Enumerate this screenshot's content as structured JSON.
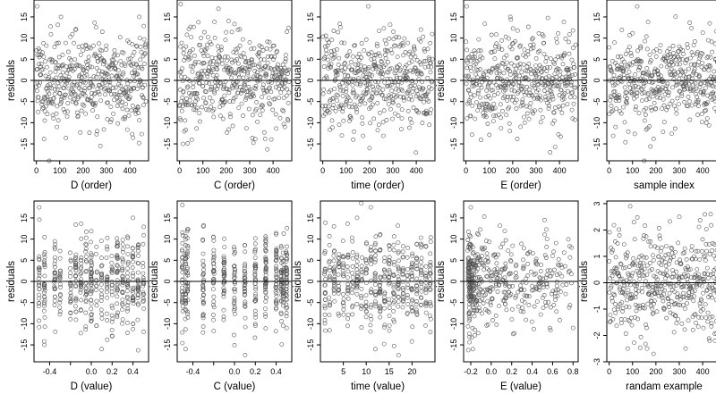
{
  "figure": {
    "background": "#ffffff",
    "point_color": "#555555",
    "frame_color": "#000000"
  },
  "chart_data": [
    {
      "type": "scatter",
      "row": 0,
      "col": 0,
      "xlabel": "D (order)",
      "ylabel": "residuals",
      "xlim": [
        -10,
        480
      ],
      "ylim": [
        -19,
        19
      ],
      "xticks": [
        0,
        100,
        200,
        300,
        400
      ],
      "xtick_labels": [
        "0",
        "100",
        "200",
        "300",
        "400"
      ],
      "yticks": [
        -15,
        -10,
        -5,
        0,
        5,
        10,
        15
      ],
      "ytick_labels": [
        "-15",
        "-10",
        "-5",
        "0",
        "5",
        "10",
        "15"
      ],
      "hline": 0,
      "x_pattern": "index",
      "n": 460,
      "spread": 5.5,
      "seed": 11,
      "sample_points": [
        [
          3,
          17.5
        ],
        [
          5,
          6
        ],
        [
          10,
          7.5
        ],
        [
          55,
          -19
        ],
        [
          200,
          3
        ],
        [
          260,
          -12
        ],
        [
          430,
          8
        ],
        [
          440,
          15
        ]
      ]
    },
    {
      "type": "scatter",
      "row": 0,
      "col": 1,
      "xlabel": "C (order)",
      "ylabel": "residuals",
      "xlim": [
        -10,
        480
      ],
      "ylim": [
        -19,
        19
      ],
      "xticks": [
        0,
        100,
        200,
        300,
        400
      ],
      "xtick_labels": [
        "0",
        "100",
        "200",
        "300",
        "400"
      ],
      "yticks": [
        -15,
        -10,
        -5,
        0,
        5,
        10,
        15
      ],
      "ytick_labels": [
        "-15",
        "-10",
        "-5",
        "0",
        "5",
        "10",
        "15"
      ],
      "hline": 0,
      "x_pattern": "index",
      "n": 460,
      "spread": 5.5,
      "seed": 23,
      "sample_points": [
        [
          2,
          -9
        ],
        [
          5,
          18
        ],
        [
          15,
          -15
        ],
        [
          250,
          12
        ],
        [
          300,
          9
        ],
        [
          440,
          -7
        ],
        [
          450,
          -11
        ]
      ]
    },
    {
      "type": "scatter",
      "row": 0,
      "col": 2,
      "xlabel": "time (order)",
      "ylabel": "residuals",
      "xlim": [
        -10,
        480
      ],
      "ylim": [
        -19,
        19
      ],
      "xticks": [
        0,
        100,
        200,
        300,
        400
      ],
      "xtick_labels": [
        "0",
        "100",
        "200",
        "300",
        "400"
      ],
      "yticks": [
        -15,
        -10,
        -5,
        0,
        5,
        10,
        15
      ],
      "ytick_labels": [
        "-15",
        "-10",
        "-5",
        "0",
        "5",
        "10",
        "15"
      ],
      "hline": 0,
      "x_pattern": "index",
      "n": 460,
      "spread": 5.5,
      "seed": 37,
      "sample_points": [
        [
          195,
          17.5
        ],
        [
          200,
          -16
        ],
        [
          130,
          -14
        ],
        [
          420,
          12
        ],
        [
          440,
          -8
        ]
      ]
    },
    {
      "type": "scatter",
      "row": 0,
      "col": 3,
      "xlabel": "E (order)",
      "ylabel": "residuals",
      "xlim": [
        -10,
        480
      ],
      "ylim": [
        -19,
        19
      ],
      "xticks": [
        0,
        100,
        200,
        300,
        400
      ],
      "xtick_labels": [
        "0",
        "100",
        "200",
        "300",
        "400"
      ],
      "yticks": [
        -15,
        -10,
        -5,
        0,
        5,
        10,
        15
      ],
      "ytick_labels": [
        "-15",
        "-10",
        "-5",
        "0",
        "5",
        "10",
        "15"
      ],
      "hline": 0,
      "x_pattern": "index",
      "n": 460,
      "spread": 5.5,
      "seed": 41,
      "sample_points": [
        [
          3,
          17.5
        ],
        [
          5,
          -9
        ],
        [
          190,
          15
        ],
        [
          360,
          -17
        ],
        [
          420,
          6
        ]
      ]
    },
    {
      "type": "scatter",
      "row": 0,
      "col": 4,
      "xlabel": "sample index",
      "ylabel": "residuals",
      "xlim": [
        -10,
        480
      ],
      "ylim": [
        -19,
        19
      ],
      "xticks": [
        0,
        100,
        200,
        300,
        400
      ],
      "xtick_labels": [
        "0",
        "100",
        "200",
        "300",
        "400"
      ],
      "yticks": [
        -15,
        -10,
        -5,
        0,
        5,
        10,
        15
      ],
      "ytick_labels": [
        "-15",
        "-10",
        "-5",
        "0",
        "5",
        "10",
        "15"
      ],
      "hline": 0,
      "x_pattern": "index",
      "n": 460,
      "spread": 5.5,
      "seed": 53,
      "sample_points": [
        [
          120,
          17.5
        ],
        [
          150,
          -19
        ],
        [
          300,
          8
        ],
        [
          420,
          -9
        ]
      ]
    },
    {
      "type": "scatter",
      "row": 1,
      "col": 0,
      "xlabel": "D (value)",
      "ylabel": "residuals",
      "xlim": [
        -0.55,
        0.55
      ],
      "ylim": [
        -19,
        19
      ],
      "xticks": [
        -0.4,
        -0.2,
        0.0,
        0.2,
        0.4
      ],
      "xtick_labels": [
        "-0.4",
        "",
        "0.0",
        "0.2",
        "0.4"
      ],
      "yticks": [
        -15,
        -10,
        -5,
        0,
        5,
        10,
        15
      ],
      "ytick_labels": [
        "-15",
        "-10",
        "-5",
        "0",
        "5",
        "10",
        "15"
      ],
      "hline": 0,
      "x_pattern": "clustered",
      "x_levels": [
        -0.5,
        -0.45,
        -0.35,
        -0.3,
        -0.2,
        -0.15,
        -0.1,
        -0.05,
        0.0,
        0.05,
        0.1,
        0.15,
        0.2,
        0.25,
        0.3,
        0.35,
        0.4,
        0.45,
        0.5
      ],
      "n": 460,
      "spread": 5.5,
      "seed": 61,
      "sample_points": [
        [
          -0.5,
          17.5
        ],
        [
          -0.45,
          -15
        ],
        [
          0.4,
          15
        ],
        [
          0.1,
          -16
        ]
      ]
    },
    {
      "type": "scatter",
      "row": 1,
      "col": 1,
      "xlabel": "C (value)",
      "ylabel": "residuals",
      "xlim": [
        -0.55,
        0.55
      ],
      "ylim": [
        -19,
        19
      ],
      "xticks": [
        -0.4,
        -0.2,
        0.0,
        0.2,
        0.4
      ],
      "xtick_labels": [
        "-0.4",
        "",
        "0.0",
        "0.2",
        "0.4"
      ],
      "yticks": [
        -15,
        -10,
        -5,
        0,
        5,
        10,
        15
      ],
      "ytick_labels": [
        "-15",
        "-10",
        "-5",
        "0",
        "5",
        "10",
        "15"
      ],
      "hline": 0,
      "x_pattern": "clustered",
      "x_levels": [
        -0.5,
        -0.47,
        -0.45,
        -0.3,
        -0.2,
        -0.1,
        0.0,
        0.1,
        0.2,
        0.3,
        0.4,
        0.45,
        0.47,
        0.5
      ],
      "n": 460,
      "spread": 5.5,
      "seed": 71,
      "sample_points": [
        [
          -0.5,
          18
        ],
        [
          -0.47,
          -16
        ],
        [
          0.5,
          -11
        ],
        [
          0.45,
          2
        ]
      ]
    },
    {
      "type": "scatter",
      "row": 1,
      "col": 2,
      "xlabel": "time (value)",
      "ylabel": "residuals",
      "xlim": [
        0,
        25
      ],
      "ylim": [
        -19,
        19
      ],
      "xticks": [
        5,
        10,
        15,
        20
      ],
      "xtick_labels": [
        "5",
        "10",
        "15",
        "20"
      ],
      "yticks": [
        -15,
        -10,
        -5,
        0,
        5,
        10,
        15
      ],
      "ytick_labels": [
        "-15",
        "-10",
        "-5",
        "0",
        "5",
        "10",
        "15"
      ],
      "hline": 0,
      "x_pattern": "clustered",
      "x_levels": [
        1,
        2,
        3,
        4,
        5,
        6,
        7,
        8,
        9,
        10,
        11,
        12,
        13,
        14,
        15,
        16,
        17,
        18,
        19,
        20,
        21,
        22,
        23,
        24
      ],
      "n": 460,
      "spread": 5.5,
      "seed": 83,
      "sample_points": [
        [
          11,
          17.5
        ],
        [
          12,
          -16
        ],
        [
          8,
          15
        ],
        [
          24,
          -12
        ]
      ]
    },
    {
      "type": "scatter",
      "row": 1,
      "col": 3,
      "xlabel": "E (value)",
      "ylabel": "residuals",
      "xlim": [
        -0.27,
        0.85
      ],
      "ylim": [
        -19,
        19
      ],
      "xticks": [
        -0.2,
        0.0,
        0.2,
        0.4,
        0.6,
        0.8
      ],
      "xtick_labels": [
        "-0.2",
        "0.0",
        "0.2",
        "0.4",
        "0.6",
        "0.8"
      ],
      "yticks": [
        -15,
        -10,
        -5,
        0,
        5,
        10,
        15
      ],
      "ytick_labels": [
        "-15",
        "-10",
        "-5",
        "0",
        "5",
        "10",
        "15"
      ],
      "hline": 0,
      "x_pattern": "skewed",
      "n": 460,
      "spread": 5.5,
      "seed": 97,
      "sample_points": [
        [
          -0.2,
          17.5
        ],
        [
          -0.18,
          -16
        ],
        [
          0.6,
          6
        ],
        [
          0.8,
          -11
        ],
        [
          0.45,
          4
        ]
      ]
    },
    {
      "type": "scatter",
      "row": 1,
      "col": 4,
      "xlabel": "randam example",
      "ylabel": "residuals",
      "xlim": [
        -10,
        480
      ],
      "ylim": [
        -3,
        3.1
      ],
      "xticks": [
        0,
        100,
        200,
        300,
        400
      ],
      "xtick_labels": [
        "0",
        "100",
        "200",
        "300",
        "400"
      ],
      "yticks": [
        -3,
        -2,
        -1,
        0,
        1,
        2,
        3
      ],
      "ytick_labels": [
        "-3",
        "-2",
        "-1",
        "0",
        "1",
        "2",
        "3"
      ],
      "hline": 0,
      "x_pattern": "index",
      "n": 460,
      "spread": 1.0,
      "seed": 109,
      "sample_points": [
        [
          90,
          2.9
        ],
        [
          190,
          -2.7
        ],
        [
          300,
          2.5
        ],
        [
          430,
          -2.2
        ]
      ]
    }
  ]
}
